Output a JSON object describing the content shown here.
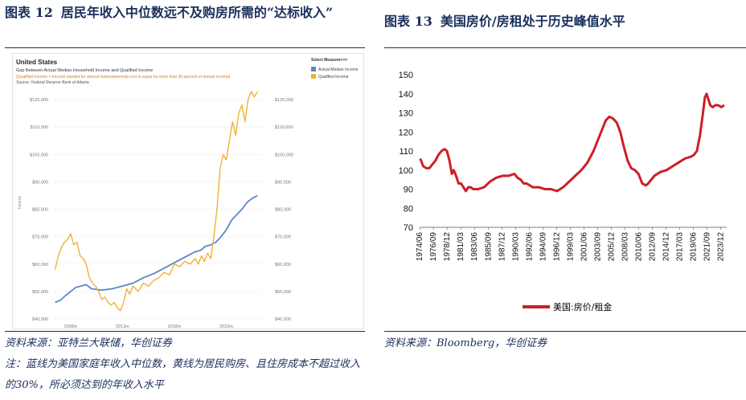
{
  "left": {
    "figure_label": "图表 12",
    "title": "居民年收入中位数远不及购房所需的“达标收入”",
    "source": "资料来源：亚特兰大联储，华创证券",
    "note": "注：蓝线为美国家庭年收入中位数，黄线为居民购房、且住房成本不超过收入的30%，所必须达到的年收入水平",
    "chart_data": {
      "type": "line",
      "title": "United States",
      "subtitle": "Gap Between Actual Median Household Income and Qualified Income",
      "definition": "(Qualified Income = Income needed for annual homeownership cost to equal no more than 30 percent of annual income)",
      "source_text": "Source: Federal Reserve Bank of Atlanta",
      "legend_title": "Select Measure>>>",
      "ylabel": "Income",
      "ylim": [
        40000,
        125000
      ],
      "xlim": [
        2006.3,
        2026.6
      ],
      "x_ticks": [
        "2008m",
        "2013m",
        "2018m",
        "2023m"
      ],
      "x_tick_values": [
        2008,
        2013,
        2018,
        2023
      ],
      "y_ticks": [
        "$40,000",
        "$50,000",
        "$60,000",
        "$70,000",
        "$80,000",
        "$90,000",
        "$100,000",
        "$110,000",
        "$120,000"
      ],
      "y_tick_values": [
        40000,
        50000,
        60000,
        70000,
        80000,
        90000,
        100000,
        110000,
        120000
      ],
      "legend_position": "top-right",
      "series": [
        {
          "name": "Actual Median Income",
          "color": "#5b88c4",
          "x": [
            2006.5,
            2007.0,
            2007.5,
            2008.0,
            2008.5,
            2009.0,
            2009.5,
            2010.0,
            2011.0,
            2012.0,
            2013.0,
            2014.0,
            2015.0,
            2016.0,
            2017.0,
            2018.0,
            2019.0,
            2020.0,
            2020.5,
            2021.0,
            2021.5,
            2022.0,
            2022.5,
            2023.0,
            2023.5,
            2024.0,
            2024.5,
            2025.0,
            2025.5,
            2026.0
          ],
          "values": [
            46000,
            46800,
            48500,
            50000,
            51500,
            52000,
            52500,
            51000,
            50500,
            51000,
            52000,
            53000,
            55000,
            56500,
            58500,
            60500,
            62500,
            64500,
            65000,
            66500,
            67000,
            68000,
            70000,
            72500,
            76000,
            78000,
            80000,
            82500,
            84000,
            85000
          ]
        },
        {
          "name": "Qualified Income",
          "color": "#f2b134",
          "x": [
            2006.5,
            2006.8,
            2007.1,
            2007.4,
            2007.7,
            2008.0,
            2008.3,
            2008.6,
            2008.9,
            2009.2,
            2009.5,
            2009.8,
            2010.1,
            2010.4,
            2010.7,
            2011.0,
            2011.3,
            2011.6,
            2011.9,
            2012.2,
            2012.5,
            2012.8,
            2013.1,
            2013.4,
            2013.7,
            2014.0,
            2014.5,
            2015.0,
            2015.5,
            2016.0,
            2016.5,
            2017.0,
            2017.5,
            2018.0,
            2018.5,
            2019.0,
            2019.5,
            2020.0,
            2020.3,
            2020.6,
            2020.9,
            2021.2,
            2021.5,
            2021.8,
            2022.1,
            2022.4,
            2022.7,
            2023.0,
            2023.3,
            2023.6,
            2023.9,
            2024.2,
            2024.5,
            2024.8,
            2025.1,
            2025.4,
            2025.7,
            2026.0
          ],
          "values": [
            58000,
            63000,
            66000,
            68000,
            69000,
            71000,
            67000,
            68000,
            63000,
            62000,
            60000,
            55000,
            53000,
            52000,
            50000,
            47000,
            48000,
            46000,
            45000,
            46000,
            44000,
            43000,
            46000,
            51000,
            49000,
            52000,
            50000,
            53000,
            52000,
            54000,
            55000,
            57000,
            56000,
            60000,
            59000,
            61000,
            60000,
            62000,
            60000,
            63000,
            61000,
            64000,
            62000,
            70000,
            80000,
            95000,
            100000,
            98000,
            105000,
            112000,
            107000,
            115000,
            118000,
            112000,
            120000,
            123000,
            121000,
            123000
          ]
        }
      ]
    }
  },
  "right": {
    "figure_label": "图表 13",
    "title": "美国房价/房租处于历史峰值水平",
    "source": "资料来源：Bloomberg，华创证券",
    "chart_data": {
      "type": "line",
      "ylim": [
        70,
        150
      ],
      "xlim": [
        1974.4,
        2024.9
      ],
      "y_ticks": [
        70,
        80,
        90,
        100,
        110,
        120,
        130,
        140,
        150
      ],
      "x_ticks": [
        "1974/06",
        "1976/09",
        "1978/12",
        "1981/03",
        "1983/06",
        "1985/09",
        "1987/12",
        "1990/03",
        "1992/06",
        "1994/09",
        "1996/12",
        "1999/03",
        "2001/06",
        "2003/09",
        "2005/12",
        "2008/03",
        "2010/06",
        "2012/09",
        "2014/12",
        "2017/03",
        "2019/06",
        "2021/09",
        "2023/12"
      ],
      "x_tick_values": [
        1974.42,
        1976.67,
        1978.92,
        1981.17,
        1983.42,
        1985.67,
        1987.92,
        1990.17,
        1992.42,
        1994.67,
        1996.92,
        1999.17,
        2001.42,
        2003.67,
        2005.92,
        2008.17,
        2010.42,
        2012.67,
        2014.92,
        2017.17,
        2019.42,
        2021.67,
        2023.92
      ],
      "legend_position": "bottom",
      "series": [
        {
          "name": "美国:房价/租金",
          "color": "#cc1f26",
          "x": [
            1974.5,
            1975.0,
            1975.5,
            1976.0,
            1976.5,
            1977.0,
            1977.5,
            1978.0,
            1978.5,
            1978.9,
            1979.3,
            1979.7,
            1980.0,
            1980.4,
            1980.8,
            1981.2,
            1981.6,
            1982.0,
            1982.4,
            1982.8,
            1983.2,
            1984.0,
            1985.0,
            1986.0,
            1987.0,
            1988.0,
            1989.0,
            1990.0,
            1990.5,
            1991.0,
            1991.5,
            1992.0,
            1993.0,
            1994.0,
            1995.0,
            1996.0,
            1997.0,
            1998.0,
            1999.0,
            2000.0,
            2001.0,
            2002.0,
            2003.0,
            2004.0,
            2005.0,
            2005.6,
            2006.2,
            2006.8,
            2007.4,
            2008.0,
            2008.6,
            2009.2,
            2009.8,
            2010.4,
            2011.0,
            2011.6,
            2012.0,
            2012.5,
            2013.0,
            2014.0,
            2015.0,
            2016.0,
            2017.0,
            2018.0,
            2019.0,
            2019.5,
            2020.0,
            2020.5,
            2021.0,
            2021.3,
            2021.6,
            2021.9,
            2022.2,
            2022.6,
            2023.0,
            2023.5,
            2024.0,
            2024.5
          ],
          "values": [
            106,
            102,
            101,
            101,
            103,
            105,
            108,
            110,
            111,
            110,
            105,
            98,
            100,
            97,
            93,
            93,
            91,
            89,
            91,
            91,
            90,
            90,
            91,
            94,
            96,
            97,
            97,
            98,
            96,
            95,
            93,
            93,
            91,
            91,
            90,
            90,
            89,
            91,
            94,
            97,
            100,
            104,
            110,
            118,
            126,
            128,
            127,
            125,
            120,
            112,
            105,
            101,
            100,
            98,
            93,
            92,
            93,
            95,
            97,
            99,
            100,
            102,
            104,
            106,
            107,
            108,
            110,
            118,
            130,
            138,
            140,
            137,
            134,
            133,
            134,
            134,
            133,
            134
          ]
        }
      ]
    }
  }
}
